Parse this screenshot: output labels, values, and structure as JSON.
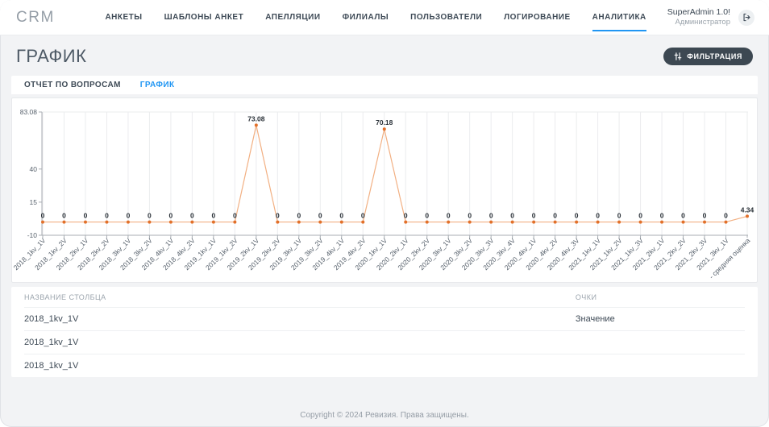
{
  "app": {
    "logo": "CRM"
  },
  "nav": {
    "items": [
      {
        "id": "ankety",
        "label": "АНКЕТЫ",
        "active": false
      },
      {
        "id": "shablony-anket",
        "label": "ШАБЛОНЫ АНКЕТ",
        "active": false
      },
      {
        "id": "apellyacii",
        "label": "АПЕЛЛЯЦИИ",
        "active": false
      },
      {
        "id": "filialy",
        "label": "ФИЛИАЛЫ",
        "active": false
      },
      {
        "id": "polzovateli",
        "label": "ПОЛЬЗОВАТЕЛИ",
        "active": false
      },
      {
        "id": "logirovanie",
        "label": "ЛОГИРОВАНИЕ",
        "active": false
      },
      {
        "id": "analitika",
        "label": "АНАЛИТИКА",
        "active": true
      }
    ]
  },
  "user": {
    "name": "SuperAdmin 1.0!",
    "role": "Администратор"
  },
  "icons": {
    "logout": "logout-icon",
    "filter": "sliders-icon"
  },
  "page": {
    "title": "ГРАФИК"
  },
  "toolbar": {
    "filter_label": "ФИЛЬТРАЦИЯ"
  },
  "tabs": [
    {
      "id": "report",
      "label": "ОТЧЕТ ПО ВОПРОСАМ",
      "active": false
    },
    {
      "id": "graph",
      "label": "ГРАФИК",
      "active": true
    }
  ],
  "chart_data": {
    "type": "line",
    "title": "",
    "xlabel": "",
    "ylabel": "",
    "categories": [
      "2018_1kv_1V",
      "2018_1kv_2V",
      "2018_2kv_1V",
      "2018_2kv_2V",
      "2018_3kv_1V",
      "2018_3kv_2V",
      "2018_4kv_1V",
      "2018_4kv_2V",
      "2019_1kv_1V",
      "2019_1kv_2V",
      "2019_2kv_1V",
      "2019_2kv_2V",
      "2019_3kv_1V",
      "2019_3kv_2V",
      "2019_4kv_1V",
      "2019_4kv_2V",
      "2020_1kv_1V",
      "2020_2kv_1V",
      "2020_2kv_2V",
      "2020_3kv_1V",
      "2020_3kv_2V",
      "2020_3kv_3V",
      "2020_3kv_4V",
      "2020_4kv_1V",
      "2020_4kv_2V",
      "2020_4kv_3V",
      "2021_1kv_1V",
      "2021_1kv_2V",
      "2021_1kv_3V",
      "2021_2kv_1V",
      "2021_2kv_2V",
      "2021_2kv_3V",
      "2021_3kv_1V",
      "- средняя оценка"
    ],
    "values": [
      0,
      0,
      0,
      0,
      0,
      0,
      0,
      0,
      0,
      0,
      73.08,
      0,
      0,
      0,
      0,
      0,
      70.18,
      0,
      0,
      0,
      0,
      0,
      0,
      0,
      0,
      0,
      0,
      0,
      0,
      0,
      0,
      0,
      0,
      4.34
    ],
    "y_ticks": [
      83.08,
      40,
      15,
      -10
    ],
    "ylim": [
      -10,
      83.08
    ],
    "grid": true,
    "legend_position": "none",
    "line_color": "#f2b083",
    "point_color": "#e2702a",
    "value_label_color": "#2a3138",
    "axis_color": "#a8adb3",
    "grid_color": "#ebecee",
    "tick_label_color": "#57616c"
  },
  "table": {
    "headers": [
      "НАЗВАНИЕ СТОЛБЦА",
      "ОЧКИ"
    ],
    "rows": [
      {
        "name": "2018_1kv_1V",
        "score": "Значение"
      },
      {
        "name": "2018_1kv_1V",
        "score": ""
      },
      {
        "name": "2018_1kv_1V",
        "score": ""
      }
    ]
  },
  "footer": {
    "copyright": "Copyright © 2024 Ревизия. Права защищены."
  }
}
